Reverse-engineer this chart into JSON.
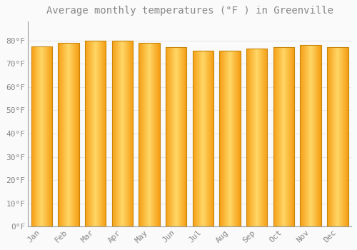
{
  "title": "Average monthly temperatures (°F ) in Greenville",
  "months": [
    "Jan",
    "Feb",
    "Mar",
    "Apr",
    "May",
    "Jun",
    "Jul",
    "Aug",
    "Sep",
    "Oct",
    "Nov",
    "Dec"
  ],
  "values": [
    77.5,
    79.0,
    80.0,
    80.0,
    79.0,
    77.0,
    75.5,
    75.5,
    76.5,
    77.0,
    78.0,
    77.0
  ],
  "bar_color_center": "#FFD166",
  "bar_color_edge": "#F5A623",
  "bar_border_color": "#C8860A",
  "background_color": "#FAFAFA",
  "grid_color": "#E8E8E8",
  "ylim": [
    0,
    88
  ],
  "yticks": [
    0,
    10,
    20,
    30,
    40,
    50,
    60,
    70,
    80
  ],
  "ytick_labels": [
    "0°F",
    "10°F",
    "20°F",
    "30°F",
    "40°F",
    "50°F",
    "60°F",
    "70°F",
    "80°F"
  ],
  "title_fontsize": 10,
  "tick_fontsize": 8,
  "font_color": "#888888",
  "bar_width": 0.78
}
